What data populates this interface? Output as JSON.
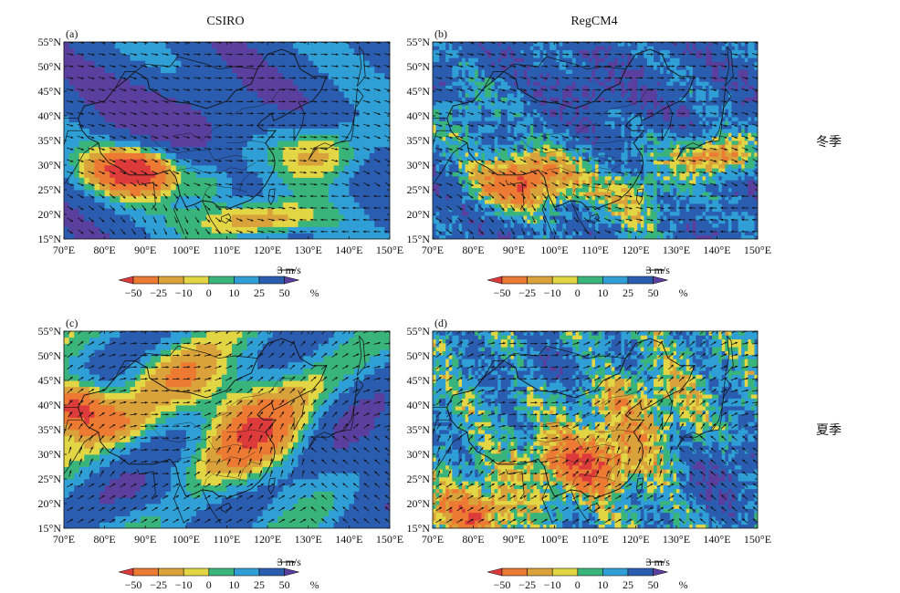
{
  "figure": {
    "row_labels": [
      "冬季",
      "夏季"
    ],
    "colorbar": {
      "ticks": [
        "−50",
        "−25",
        "−10",
        "0",
        "10",
        "25",
        "50"
      ],
      "unit": "%",
      "colors": [
        "#dd3b3b",
        "#ec7a33",
        "#d9a23a",
        "#e3d645",
        "#39b47a",
        "#2f9fd6",
        "#2a5cb0",
        "#5a3f9e"
      ],
      "reference_vector": "3 m/s"
    },
    "axes": {
      "lat_labels": [
        "55°N",
        "50°N",
        "45°N",
        "40°N",
        "35°N",
        "30°N",
        "25°N",
        "20°N",
        "15°N"
      ],
      "lon_labels": [
        "70°E",
        "80°E",
        "90°E",
        "100°E",
        "110°E",
        "120°E",
        "130°E",
        "140°E",
        "150°E"
      ],
      "lat_range": [
        15,
        55
      ],
      "lon_range": [
        70,
        150
      ]
    },
    "panels": [
      {
        "id": "a",
        "label": "(a)",
        "column_title": "CSIRO",
        "season": "winter"
      },
      {
        "id": "b",
        "label": "(b)",
        "column_title": "RegCM4",
        "season": "winter"
      },
      {
        "id": "c",
        "label": "(c)",
        "column_title": "",
        "season": "summer"
      },
      {
        "id": "d",
        "label": "(d)",
        "column_title": "",
        "season": "summer"
      }
    ]
  }
}
